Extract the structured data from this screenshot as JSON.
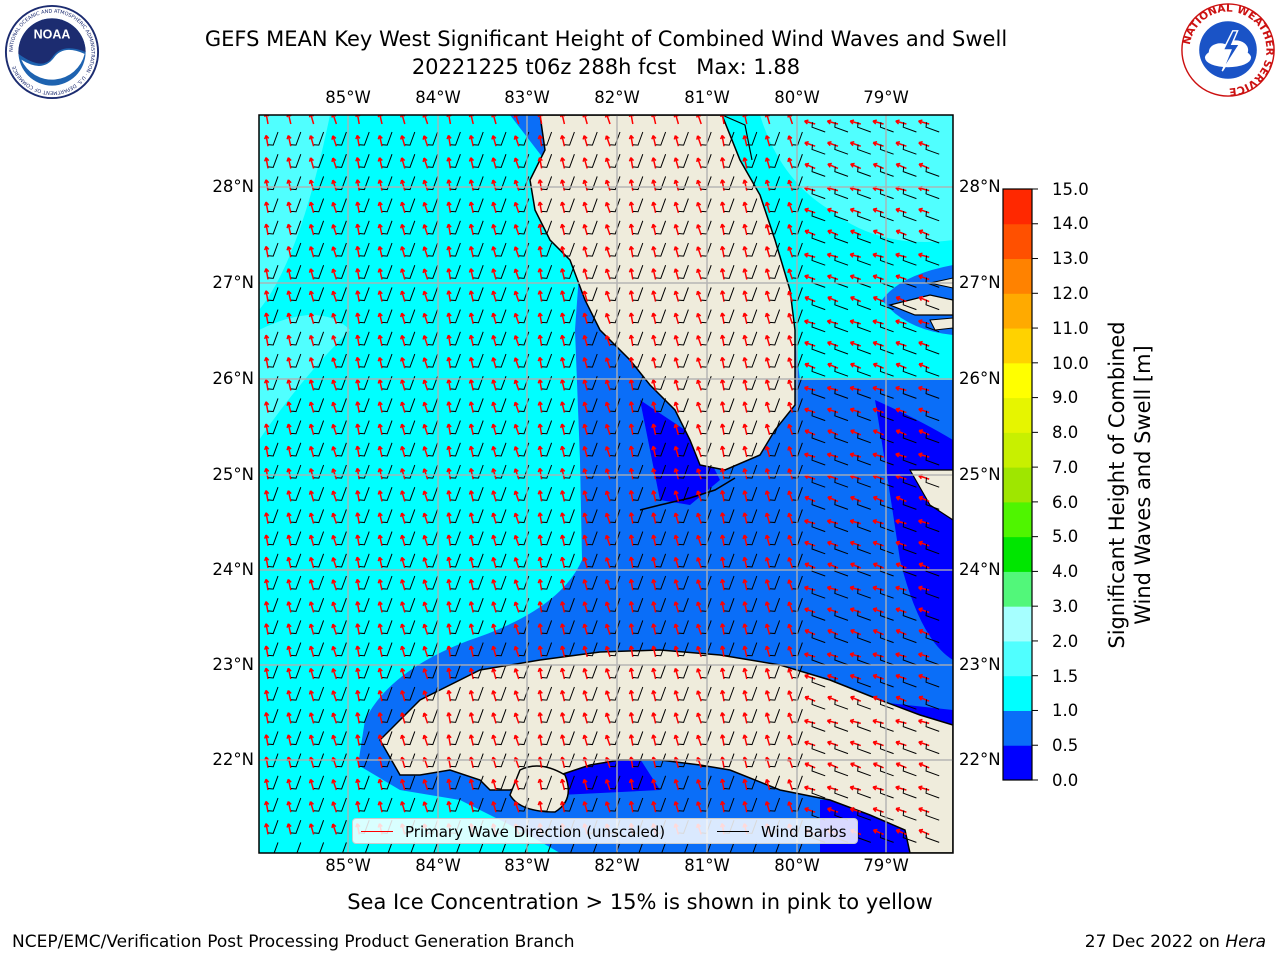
{
  "header": {
    "title_line1": "GEFS MEAN Key West Significant Height of Combined Wind Waves and Swell",
    "title_line2": "20221225 t06z 288h fcst   Max: 1.88"
  },
  "logos": {
    "left": {
      "name": "noaa-logo",
      "text": "NOAA",
      "ring_text": "NATIONAL OCEANIC AND ATMOSPHERIC ADMINISTRATION · U.S. DEPARTMENT OF COMMERCE"
    },
    "right": {
      "name": "nws-logo",
      "ring_text": "NATIONAL WEATHER SERVICE"
    }
  },
  "map": {
    "lon_range": [
      -86.0,
      -78.25
    ],
    "lat_range": [
      21.05,
      28.75
    ],
    "lon_ticks": [
      "85°W",
      "84°W",
      "83°W",
      "82°W",
      "81°W",
      "80°W",
      "79°W"
    ],
    "lat_ticks": [
      "28°N",
      "27°N",
      "26°N",
      "25°N",
      "24°N",
      "23°N",
      "22°N"
    ],
    "gridlines": true,
    "land_color": "#efecdc",
    "wave_arrow_color": "#ff0000",
    "wind_barb_color": "#000000"
  },
  "colorbar": {
    "label_line1": "Significant Height of Combined",
    "label_line2": "Wind Waves and Swell [m]",
    "ticks": [
      "0.0",
      "0.5",
      "1.0",
      "1.5",
      "2.0",
      "3.0",
      "4.0",
      "5.0",
      "6.0",
      "7.0",
      "8.0",
      "9.0",
      "10.0",
      "11.0",
      "12.0",
      "13.0",
      "14.0",
      "15.0"
    ],
    "colors": [
      "#0000ff",
      "#0a6ef8",
      "#00ffff",
      "#50ffff",
      "#a6ffff",
      "#52f77a",
      "#00e600",
      "#4ff500",
      "#9fe600",
      "#c8f000",
      "#e6f500",
      "#ffff00",
      "#ffd200",
      "#ffaa00",
      "#ff8200",
      "#ff5000",
      "#ff2800"
    ]
  },
  "legend": {
    "items": [
      {
        "label": "Primary Wave Direction (unscaled)",
        "color": "#ff0000"
      },
      {
        "label": "Wind Barbs",
        "color": "#000000"
      }
    ]
  },
  "notes": {
    "sea_ice": "Sea Ice Concentration > 15% is shown in pink to yellow"
  },
  "footer": {
    "left": "NCEP/EMC/Verification Post Processing Product Generation Branch",
    "right_date": "27 Dec 2022 on ",
    "right_host": "Hera"
  }
}
